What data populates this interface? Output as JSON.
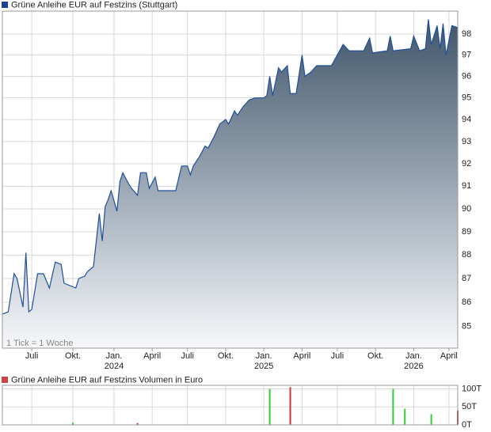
{
  "chart_data": [
    {
      "type": "area",
      "title": "Grüne Anleihe EUR auf Festzins (Stuttgart)",
      "note": "1 Tick = 1 Woche",
      "legend_color": "#1f3f8f",
      "color": "#1f4e9c",
      "log": true,
      "grid": true,
      "x": [
        0,
        2,
        4,
        5,
        7,
        8,
        9,
        10,
        12,
        14,
        16,
        18,
        20,
        21,
        25,
        26,
        28,
        29,
        31,
        33,
        34,
        35,
        36,
        37,
        39,
        40,
        41,
        43,
        44,
        46,
        47,
        49,
        50,
        52,
        53,
        59,
        61,
        63,
        64,
        65,
        67,
        69,
        70,
        72,
        74,
        76,
        77,
        79,
        80,
        82,
        84,
        86,
        89,
        90,
        91,
        92,
        94,
        95,
        97,
        98,
        100,
        102,
        103,
        105,
        107,
        112,
        114,
        116,
        118,
        123,
        125,
        126,
        131,
        132,
        133,
        139,
        140,
        142,
        144,
        145,
        146,
        148,
        149,
        150,
        151,
        153,
        155
      ],
      "values": [
        85.5,
        85.6,
        87.2,
        87.0,
        85.8,
        88.1,
        85.6,
        85.7,
        87.2,
        87.2,
        86.6,
        87.7,
        87.6,
        86.8,
        86.6,
        87.0,
        87.1,
        87.3,
        87.5,
        89.8,
        88.6,
        90.1,
        90.4,
        90.8,
        89.9,
        91.2,
        91.6,
        91.1,
        90.9,
        90.6,
        91.6,
        91.6,
        90.9,
        91.4,
        90.8,
        90.8,
        91.9,
        91.9,
        91.5,
        91.9,
        92.3,
        92.8,
        92.7,
        93.2,
        93.8,
        94.0,
        93.8,
        94.4,
        94.2,
        94.6,
        94.9,
        95.0,
        95.0,
        95.1,
        96.0,
        95.1,
        96.4,
        96.2,
        96.5,
        95.2,
        95.2,
        97.0,
        96.0,
        96.2,
        96.5,
        96.5,
        97.0,
        97.5,
        97.2,
        97.2,
        97.8,
        97.1,
        97.2,
        97.9,
        97.2,
        97.3,
        97.9,
        97.2,
        97.3,
        98.7,
        97.5,
        98.4,
        97.3,
        98.5,
        97.0,
        98.4,
        98.3
      ],
      "xlim": [
        0,
        155
      ],
      "xticks": [
        {
          "value": 10,
          "label": "Juli"
        },
        {
          "value": 24,
          "label": "Okt."
        },
        {
          "value": 38,
          "label": "Jan.",
          "year": "2024"
        },
        {
          "value": 51,
          "label": "April"
        },
        {
          "value": 63,
          "label": "Juli"
        },
        {
          "value": 76,
          "label": "Okt."
        },
        {
          "value": 89,
          "label": "Jan.",
          "year": "2025"
        },
        {
          "value": 102,
          "label": "April"
        },
        {
          "value": 114,
          "label": "Juli"
        },
        {
          "value": 127,
          "label": "Okt."
        },
        {
          "value": 140,
          "label": "Jan.",
          "year": "2026"
        },
        {
          "value": 152,
          "label": "April"
        }
      ],
      "ylim": [
        84.1,
        99.1
      ],
      "yticks": [
        85,
        86,
        87,
        88,
        89,
        90,
        91,
        92,
        93,
        94,
        95,
        96,
        97,
        98
      ]
    },
    {
      "type": "bar",
      "title": "Grüne Anleihe EUR auf Festzins Volumen in Euro",
      "legend_color": "#cc4444",
      "grid": true,
      "x": [
        24,
        46,
        91,
        98,
        133,
        137,
        146,
        155
      ],
      "values": [
        6000,
        5000,
        100000,
        105000,
        100000,
        45000,
        30000,
        40000
      ],
      "colors": [
        "#33cc33",
        "#cc3333",
        "#33cc33",
        "#cc3333",
        "#33cc33",
        "#33cc33",
        "#33cc33",
        "#cc3333"
      ],
      "xlim": [
        0,
        155
      ],
      "ylim": [
        0,
        110000
      ],
      "yticks": [
        {
          "value": 0,
          "label": "0T"
        },
        {
          "value": 50000,
          "label": "50T"
        },
        {
          "value": 100000,
          "label": "100T"
        }
      ]
    }
  ]
}
